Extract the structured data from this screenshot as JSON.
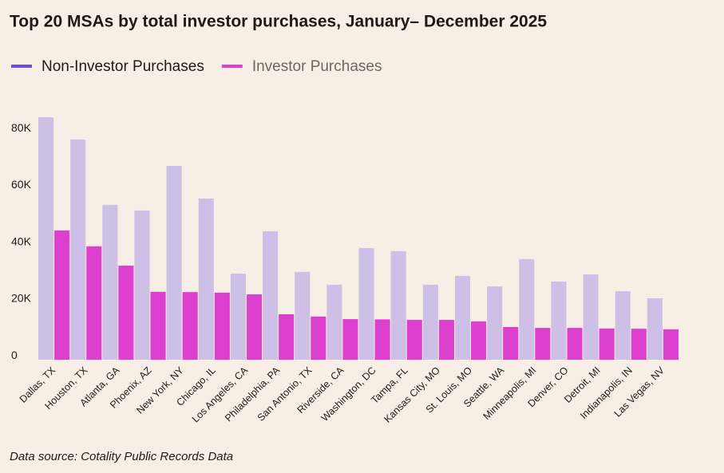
{
  "chart_data": {
    "type": "bar",
    "title": "Top 20 MSAs by total investor purchases, January– December 2025",
    "source": "Data source: Cotality Public Records Data",
    "categories": [
      "Dallas, TX",
      "Houston, TX",
      "Atlanta, GA",
      "Phoenix, AZ",
      "New York, NY",
      "Chicago, IL",
      "Los Angeles, CA",
      "Philadelphia, PA",
      "San Antonio, TX",
      "Riverside, CA",
      "Washington, DC",
      "Tampa, FL",
      "Kansas City, MO",
      "St. Louis, MO",
      "Seattle, WA",
      "Minneapolis, MI",
      "Denver, CO",
      "Detroit, MI",
      "Indianapolis, IN",
      "Las Vegas, NV"
    ],
    "series": [
      {
        "name": "Non-Investor Purchases",
        "color": "#cdbfe6",
        "legend_color": "#6b4ee6",
        "values": [
          85300,
          77500,
          54500,
          52500,
          68200,
          56700,
          30300,
          45200,
          30900,
          26400,
          39300,
          38200,
          26400,
          29500,
          25800,
          35400,
          27500,
          30000,
          24100,
          21600
        ]
      },
      {
        "name": "Investor Purchases",
        "color": "#dd3fcf",
        "legend_color": "#dd3fcf",
        "values": [
          45500,
          39900,
          33100,
          23900,
          23800,
          23600,
          23000,
          16000,
          15200,
          14300,
          14200,
          14000,
          14000,
          13500,
          11500,
          11200,
          11200,
          11000,
          10900,
          10700
        ]
      }
    ],
    "ylim": [
      0,
      87000
    ],
    "yticks": [
      0,
      {
        "value": 20000,
        "label": "20K"
      },
      {
        "value": 40000,
        "label": "40K"
      },
      {
        "value": 60000,
        "label": "60K"
      },
      {
        "value": 80000,
        "label": "80K"
      }
    ],
    "grid": false
  }
}
